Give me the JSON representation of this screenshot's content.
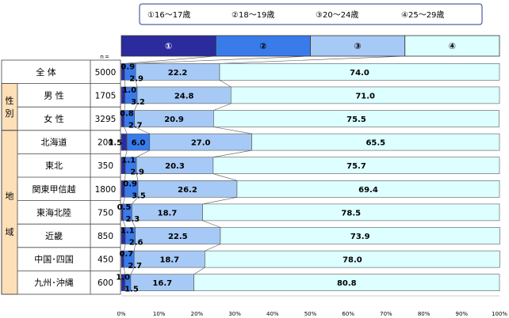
{
  "legend": [
    {
      "mark": "①",
      "label": "16～17歳"
    },
    {
      "mark": "②",
      "label": "18～19歳"
    },
    {
      "mark": "③",
      "label": "20～24歳"
    },
    {
      "mark": "④",
      "label": "25～29歳"
    }
  ],
  "header_strip_marks": [
    "①",
    "②",
    "③",
    "④"
  ],
  "n_header": "ｎ=",
  "group_labels": {
    "sex": "性別",
    "region": "地域"
  },
  "colors": {
    "s1": "#2b2b9e",
    "s2": "#3a7bea",
    "s3": "#a7c9f5",
    "s4": "#ddffff",
    "group_bg": "#fde0b8",
    "border": "#444444"
  },
  "chart_data": {
    "type": "bar",
    "stacked": true,
    "orientation": "horizontal",
    "categories": [
      "全 体",
      "男 性",
      "女 性",
      "北海道",
      "東北",
      "関東甲信越",
      "東海北陸",
      "近畿",
      "中国･四国",
      "九州･沖縄"
    ],
    "n": [
      5000,
      1705,
      3295,
      200,
      350,
      1800,
      750,
      850,
      450,
      600
    ],
    "series": [
      {
        "name": "①16～17歳",
        "values": [
          0.9,
          1.0,
          0.8,
          1.5,
          1.1,
          0.9,
          0.5,
          1.1,
          0.7,
          1.0
        ]
      },
      {
        "name": "②18～19歳",
        "values": [
          2.9,
          3.2,
          2.7,
          6.0,
          2.9,
          3.5,
          2.3,
          2.6,
          2.7,
          1.5
        ]
      },
      {
        "name": "③20～24歳",
        "values": [
          22.2,
          24.8,
          20.9,
          27.0,
          20.3,
          26.2,
          18.7,
          22.5,
          18.7,
          16.7
        ]
      },
      {
        "name": "④25～29歳",
        "values": [
          74.0,
          71.0,
          75.5,
          65.5,
          75.7,
          69.4,
          78.5,
          73.9,
          78.0,
          80.8
        ]
      }
    ],
    "x_ticks": [
      "0%",
      "10%",
      "20%",
      "30%",
      "40%",
      "50%",
      "60%",
      "70%",
      "80%",
      "90%",
      "100%"
    ],
    "xlim": [
      0,
      100
    ]
  }
}
